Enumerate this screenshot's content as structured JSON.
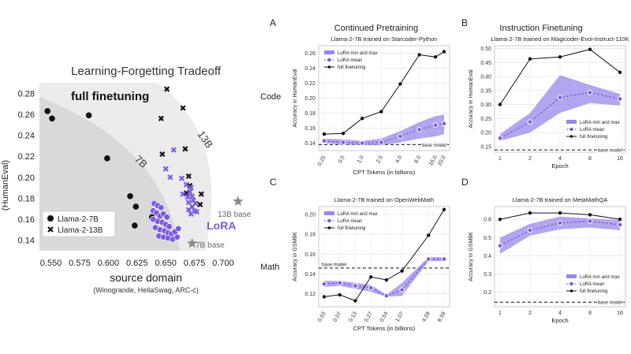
{
  "figure": {
    "col_titles": [
      "Continued Pretraining",
      "Instruction Finetuning"
    ],
    "row_labels": [
      "Code",
      "Math"
    ]
  },
  "colors": {
    "lora": "#7a5ae0",
    "lora_band": "#9b87ea",
    "full": "#111111",
    "bg_dark": "#d9d9d9",
    "bg_light": "#ececec",
    "base_star": "#8a8a8a"
  },
  "chart_data": [
    {
      "id": "tradeoff",
      "type": "scatter",
      "title": "Learning-Forgetting Tradeoff",
      "xlabel": "source domain",
      "xsublabel": "(Winogrande, HellaSwag, ARC-c)",
      "ylabel": "(HumanEval)",
      "xlim": [
        0.54,
        0.72
      ],
      "ylim": [
        0.13,
        0.29
      ],
      "xticks": [
        "0.550",
        "0.575",
        "0.600",
        "0.625",
        "0.650",
        "0.675",
        "0.700"
      ],
      "xtick_values": [
        0.55,
        0.575,
        0.6,
        0.625,
        0.65,
        0.675,
        0.7
      ],
      "yticks": [
        "0.14",
        "0.16",
        "0.18",
        "0.20",
        "0.22",
        "0.24",
        "0.26",
        "0.28"
      ],
      "ytick_values": [
        0.14,
        0.16,
        0.18,
        0.2,
        0.22,
        0.24,
        0.26,
        0.28
      ],
      "annotations": {
        "full": "full finetuning",
        "lora": "LoRA",
        "r7b": "7B",
        "r13b": "13B",
        "base7": "7B base",
        "base13": "13B base"
      },
      "legend": [
        {
          "name": "Llama-2-7B",
          "marker": "circle"
        },
        {
          "name": "Llama-2-13B",
          "marker": "x"
        }
      ],
      "series": [
        {
          "name": "full 7B",
          "marker": "circle",
          "color": "#111111",
          "points": [
            [
              0.547,
              0.263
            ],
            [
              0.551,
              0.256
            ],
            [
              0.583,
              0.259
            ],
            [
              0.599,
              0.218
            ],
            [
              0.619,
              0.182
            ],
            [
              0.624,
              0.172
            ],
            [
              0.623,
              0.154
            ],
            [
              0.638,
              0.162
            ]
          ]
        },
        {
          "name": "full 13B",
          "marker": "x",
          "color": "#111111",
          "points": [
            [
              0.651,
              0.284
            ],
            [
              0.665,
              0.266
            ],
            [
              0.646,
              0.256
            ],
            [
              0.667,
              0.227
            ],
            [
              0.647,
              0.222
            ],
            [
              0.67,
              0.201
            ],
            [
              0.671,
              0.192
            ],
            [
              0.681,
              0.184
            ],
            [
              0.68,
              0.174
            ],
            [
              0.668,
              0.185
            ]
          ]
        },
        {
          "name": "lora 7B",
          "marker": "circle",
          "color": "#7a5ae0",
          "points": [
            [
              0.64,
              0.175
            ],
            [
              0.643,
              0.173
            ],
            [
              0.646,
              0.171
            ],
            [
              0.639,
              0.168
            ],
            [
              0.642,
              0.166
            ],
            [
              0.645,
              0.163
            ],
            [
              0.648,
              0.165
            ],
            [
              0.651,
              0.162
            ],
            [
              0.639,
              0.16
            ],
            [
              0.643,
              0.158
            ],
            [
              0.647,
              0.157
            ],
            [
              0.65,
              0.155
            ],
            [
              0.653,
              0.153
            ],
            [
              0.641,
              0.152
            ],
            [
              0.645,
              0.15
            ],
            [
              0.649,
              0.149
            ],
            [
              0.652,
              0.147
            ],
            [
              0.655,
              0.146
            ],
            [
              0.658,
              0.148
            ],
            [
              0.661,
              0.151
            ],
            [
              0.644,
              0.144
            ],
            [
              0.648,
              0.143
            ],
            [
              0.652,
              0.142
            ],
            [
              0.656,
              0.141
            ],
            [
              0.66,
              0.143
            ]
          ]
        },
        {
          "name": "lora 13B",
          "marker": "x",
          "color": "#7a5ae0",
          "points": [
            [
              0.657,
              0.226
            ],
            [
              0.65,
              0.208
            ],
            [
              0.654,
              0.2
            ],
            [
              0.664,
              0.199
            ],
            [
              0.668,
              0.193
            ],
            [
              0.672,
              0.19
            ],
            [
              0.671,
              0.186
            ],
            [
              0.665,
              0.184
            ],
            [
              0.669,
              0.181
            ],
            [
              0.673,
              0.182
            ],
            [
              0.674,
              0.178
            ],
            [
              0.67,
              0.176
            ],
            [
              0.676,
              0.175
            ],
            [
              0.673,
              0.172
            ],
            [
              0.67,
              0.169
            ],
            [
              0.675,
              0.168
            ],
            [
              0.672,
              0.165
            ],
            [
              0.677,
              0.167
            ]
          ]
        },
        {
          "name": "base",
          "marker": "star",
          "color": "#8a8a8a",
          "points": [
            [
              0.673,
              0.137
            ],
            [
              0.713,
              0.177
            ]
          ]
        }
      ]
    },
    {
      "id": "A",
      "panel": "A",
      "type": "line",
      "title": "Llama-2-7B trained on Starcoder-Python",
      "xlabel": "CPT Tokens (in billions)",
      "ylabel": "Accuracy in HumanEval",
      "categories": [
        "0.25",
        "0.5",
        "1.0",
        "2.0",
        "4.0",
        "8.0",
        "16.0",
        "20.0"
      ],
      "cat_pos": [
        0,
        1,
        2,
        3,
        4,
        5,
        5.85,
        6.3
      ],
      "ylim": [
        0.13,
        0.27
      ],
      "yticks": [
        "0.14",
        "0.16",
        "0.18",
        "0.20",
        "0.22",
        "0.24",
        "0.26"
      ],
      "ytick_values": [
        0.14,
        0.16,
        0.18,
        0.2,
        0.22,
        0.24,
        0.26
      ],
      "legend": [
        "LoRA min and max",
        "LoRA mean",
        "full finetuning"
      ],
      "legend_pos": "top-left",
      "base_label": "base model",
      "base_value": 0.138,
      "base_label_side": "right",
      "series": [
        {
          "name": "full finetuning",
          "values": [
            0.152,
            0.153,
            0.173,
            0.182,
            0.219,
            0.258,
            0.255,
            0.262
          ]
        },
        {
          "name": "LoRA mean",
          "values": [
            0.143,
            0.141,
            0.14,
            0.141,
            0.149,
            0.158,
            0.164,
            0.166
          ]
        },
        {
          "name": "LoRA min",
          "values": [
            0.14,
            0.138,
            0.137,
            0.137,
            0.141,
            0.146,
            0.149,
            0.152
          ]
        },
        {
          "name": "LoRA max",
          "values": [
            0.146,
            0.145,
            0.143,
            0.146,
            0.156,
            0.168,
            0.176,
            0.178
          ]
        }
      ]
    },
    {
      "id": "B",
      "panel": "B",
      "type": "line",
      "title": "Llama-2-7B trained on Magicoder-Evol-Instruct-110K",
      "xlabel": "Epoch",
      "ylabel": "Accuracy in HumanEval",
      "categories": [
        "1",
        "2",
        "4",
        "8",
        "16"
      ],
      "cat_pos": [
        0,
        1,
        2,
        3,
        4
      ],
      "ylim": [
        0.13,
        0.51
      ],
      "yticks": [
        "0.15",
        "0.20",
        "0.25",
        "0.30",
        "0.35",
        "0.40",
        "0.45",
        "0.50"
      ],
      "ytick_values": [
        0.15,
        0.2,
        0.25,
        0.3,
        0.35,
        0.4,
        0.45,
        0.5
      ],
      "legend": [
        "LoRA min and max",
        "LoRA mean",
        "full finetuning"
      ],
      "legend_pos": "lower-right",
      "base_label": "base model",
      "base_value": 0.138,
      "base_label_side": "right",
      "series": [
        {
          "name": "full finetuning",
          "values": [
            0.3,
            0.463,
            0.47,
            0.497,
            0.415
          ]
        },
        {
          "name": "LoRA mean",
          "values": [
            0.18,
            0.238,
            0.325,
            0.343,
            0.32
          ]
        },
        {
          "name": "LoRA min",
          "values": [
            0.17,
            0.2,
            0.27,
            0.305,
            0.297
          ]
        },
        {
          "name": "LoRA max",
          "values": [
            0.195,
            0.27,
            0.405,
            0.37,
            0.338
          ]
        }
      ]
    },
    {
      "id": "C",
      "panel": "C",
      "type": "line",
      "title": "Llama-2-7B trained on OpenWebMath",
      "xlabel": "CPT Tokens (in billions)",
      "ylabel": "Accuracy in GSM8K",
      "categories": [
        "0.03",
        "0.07",
        "0.13",
        "0.27",
        "0.54",
        "1.07",
        "4.29",
        "8.59"
      ],
      "cat_pos": [
        0,
        1,
        2,
        3,
        4,
        5,
        6.7,
        7.7
      ],
      "ylim": [
        0.107,
        0.208
      ],
      "yticks": [
        "0.12",
        "0.14",
        "0.16",
        "0.18",
        "0.20"
      ],
      "ytick_values": [
        0.12,
        0.14,
        0.16,
        0.18,
        0.2
      ],
      "legend": [
        "LoRA min and max",
        "LoRA mean",
        "full finetuning"
      ],
      "legend_pos": "top-left",
      "base_label": "base model",
      "base_value": 0.146,
      "base_label_side": "left",
      "series": [
        {
          "name": "full finetuning",
          "values": [
            0.117,
            0.119,
            0.113,
            0.137,
            0.134,
            0.143,
            0.179,
            0.205
          ]
        },
        {
          "name": "LoRA mean",
          "values": [
            0.13,
            0.131,
            0.128,
            0.126,
            0.118,
            0.124,
            0.155,
            0.155
          ]
        },
        {
          "name": "LoRA min",
          "values": [
            0.127,
            0.128,
            0.125,
            0.122,
            0.117,
            0.118,
            0.153,
            0.153
          ]
        },
        {
          "name": "LoRA max",
          "values": [
            0.133,
            0.133,
            0.131,
            0.129,
            0.119,
            0.131,
            0.157,
            0.157
          ]
        }
      ]
    },
    {
      "id": "D",
      "panel": "D",
      "type": "line",
      "title": "Llama-2-7B trained on MetaMathQA",
      "xlabel": "Epoch",
      "ylabel": "Accuracy in GSM8K",
      "categories": [
        "1",
        "2",
        "4",
        "8",
        "16"
      ],
      "cat_pos": [
        0,
        1,
        2,
        3,
        4
      ],
      "ylim": [
        0.12,
        0.67
      ],
      "yticks": [
        "0.2",
        "0.3",
        "0.4",
        "0.5",
        "0.6"
      ],
      "ytick_values": [
        0.2,
        0.3,
        0.4,
        0.5,
        0.6
      ],
      "legend": [
        "LoRA min and max",
        "LoRA mean",
        "full finetuning"
      ],
      "legend_pos": "lower-right",
      "base_label": "base model",
      "base_value": 0.145,
      "base_label_side": "right",
      "series": [
        {
          "name": "full finetuning",
          "values": [
            0.6,
            0.635,
            0.635,
            0.625,
            0.6
          ]
        },
        {
          "name": "LoRA mean",
          "values": [
            0.455,
            0.54,
            0.58,
            0.59,
            0.57
          ]
        },
        {
          "name": "LoRA min",
          "values": [
            0.41,
            0.51,
            0.545,
            0.555,
            0.54
          ]
        },
        {
          "name": "LoRA max",
          "values": [
            0.5,
            0.575,
            0.615,
            0.605,
            0.595
          ]
        }
      ]
    }
  ]
}
